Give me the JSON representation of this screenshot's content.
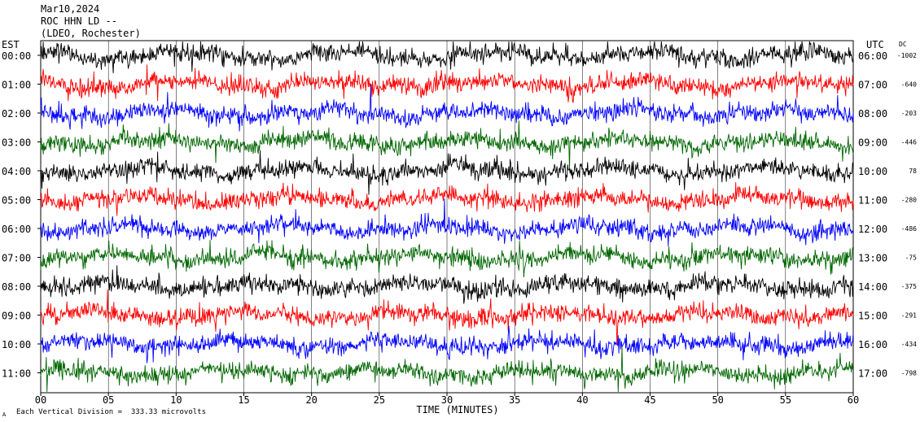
{
  "header": {
    "date": "Mar10,2024",
    "station": "ROC HHN LD --",
    "network": "(LDEO, Rochester)"
  },
  "left_tz": "EST",
  "right_tz": "UTC",
  "dc_label": "DC",
  "footer": {
    "scale_note": "Each Vertical Division =  333.33 microvolts",
    "corner_mark": "A"
  },
  "colors": {
    "cycle": [
      "#000000",
      "#ff0000",
      "#0000ff",
      "#006600"
    ],
    "grid": "#000000",
    "background": "#ffffff"
  },
  "chart_data": {
    "type": "line",
    "title": "ROC HHN LD --",
    "xlabel": "TIME (MINUTES)",
    "xlim": [
      0,
      60
    ],
    "xticks": [
      "00",
      "05",
      "10",
      "15",
      "20",
      "25",
      "30",
      "35",
      "40",
      "45",
      "50",
      "55",
      "60"
    ],
    "rows": [
      {
        "est": "00:00",
        "utc": "06:00",
        "dc": "-1002",
        "color": "#000000"
      },
      {
        "est": "01:00",
        "utc": "07:00",
        "dc": "-640",
        "color": "#ff0000"
      },
      {
        "est": "02:00",
        "utc": "08:00",
        "dc": "-203",
        "color": "#0000ff"
      },
      {
        "est": "03:00",
        "utc": "09:00",
        "dc": "-446",
        "color": "#006600"
      },
      {
        "est": "04:00",
        "utc": "10:00",
        "dc": "78",
        "color": "#000000"
      },
      {
        "est": "05:00",
        "utc": "11:00",
        "dc": "-280",
        "color": "#ff0000"
      },
      {
        "est": "06:00",
        "utc": "12:00",
        "dc": "-486",
        "color": "#0000ff"
      },
      {
        "est": "07:00",
        "utc": "13:00",
        "dc": "-75",
        "color": "#006600"
      },
      {
        "est": "08:00",
        "utc": "14:00",
        "dc": "-375",
        "color": "#000000"
      },
      {
        "est": "09:00",
        "utc": "15:00",
        "dc": "-291",
        "color": "#ff0000"
      },
      {
        "est": "10:00",
        "utc": "16:00",
        "dc": "-434",
        "color": "#0000ff"
      },
      {
        "est": "11:00",
        "utc": "17:00",
        "dc": "-798",
        "color": "#006600"
      }
    ]
  }
}
